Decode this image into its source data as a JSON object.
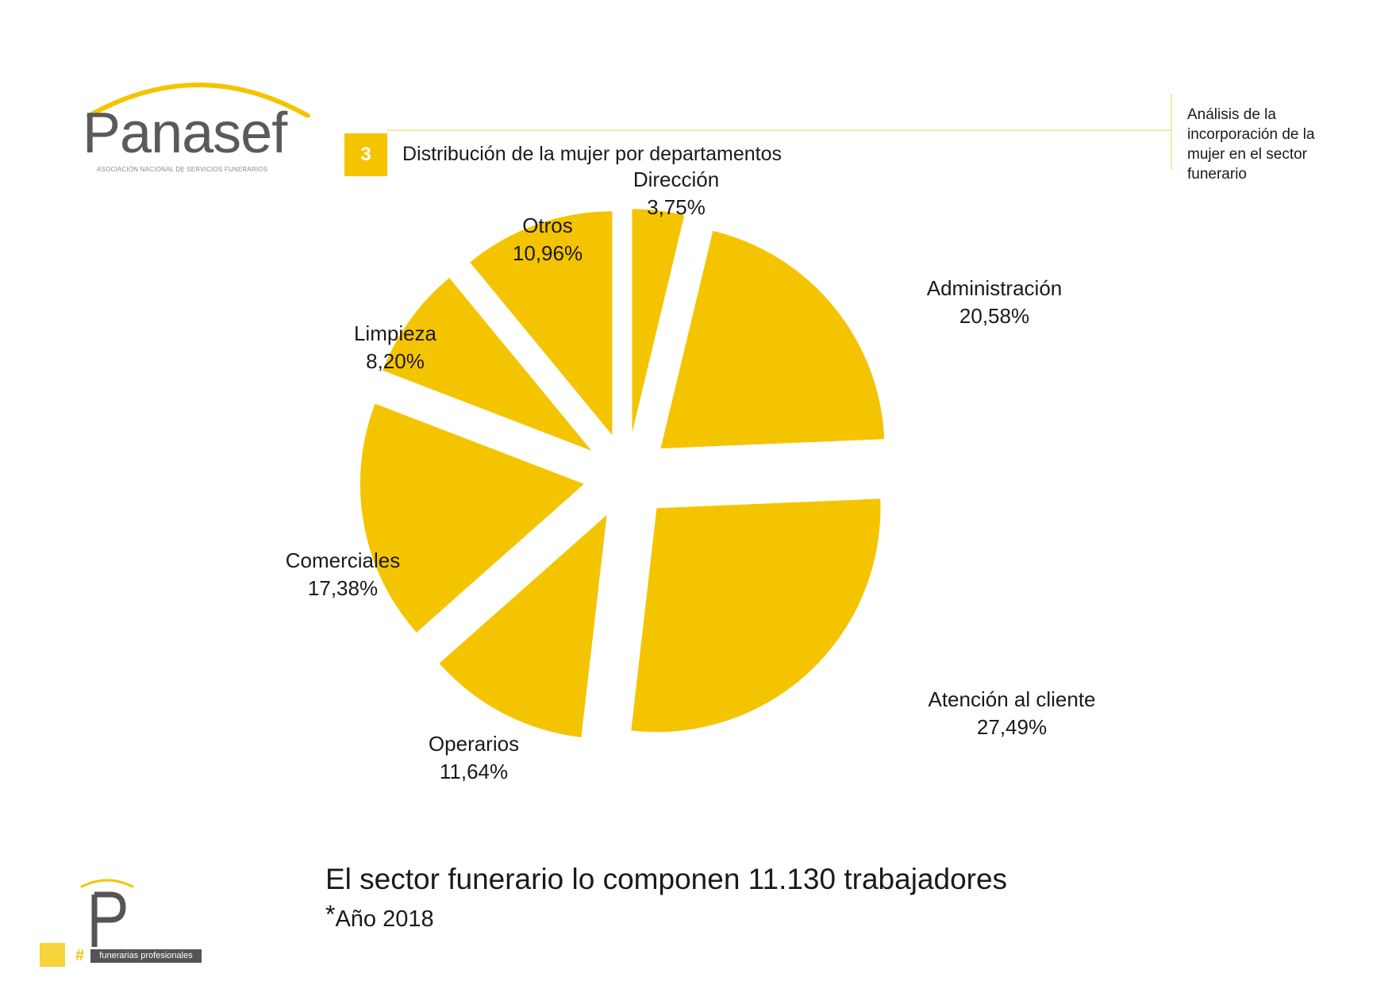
{
  "logo": {
    "name": "Panasef",
    "subtitle": "ASOCIACIÓN NACIONAL DE SERVICIOS FUNERARIOS"
  },
  "header": {
    "section_number": "3",
    "title": "Distribución de la mujer por departamentos",
    "side_note": "Análisis de la incorporación de la mujer en el sector funerario"
  },
  "chart_data": {
    "type": "pie",
    "title": "Distribución de la mujer por departamentos",
    "slices": [
      {
        "label": "Dirección",
        "value": 3.75,
        "display": "3,75%"
      },
      {
        "label": "Administración",
        "value": 20.58,
        "display": "20,58%"
      },
      {
        "label": "Atención al cliente",
        "value": 27.49,
        "display": "27,49%"
      },
      {
        "label": "Operarios",
        "value": 11.64,
        "display": "11,64%"
      },
      {
        "label": "Comerciales",
        "value": 17.38,
        "display": "17,38%"
      },
      {
        "label": "Limpieza",
        "value": 8.2,
        "display": "8,20%"
      },
      {
        "label": "Otros",
        "value": 10.96,
        "display": "10,96%"
      }
    ],
    "exploded": true,
    "colors": {
      "slice": "#f5c400"
    }
  },
  "footer": {
    "main": "El sector funerario lo componen 11.130 trabajadores",
    "note_star": "*",
    "note": "Año 2018",
    "tag": "funerarias profesionales",
    "hash": "#"
  },
  "colors": {
    "accent": "#f5c400",
    "logo_gray": "#5a5a5a",
    "header_line": "#f3e9a8"
  }
}
